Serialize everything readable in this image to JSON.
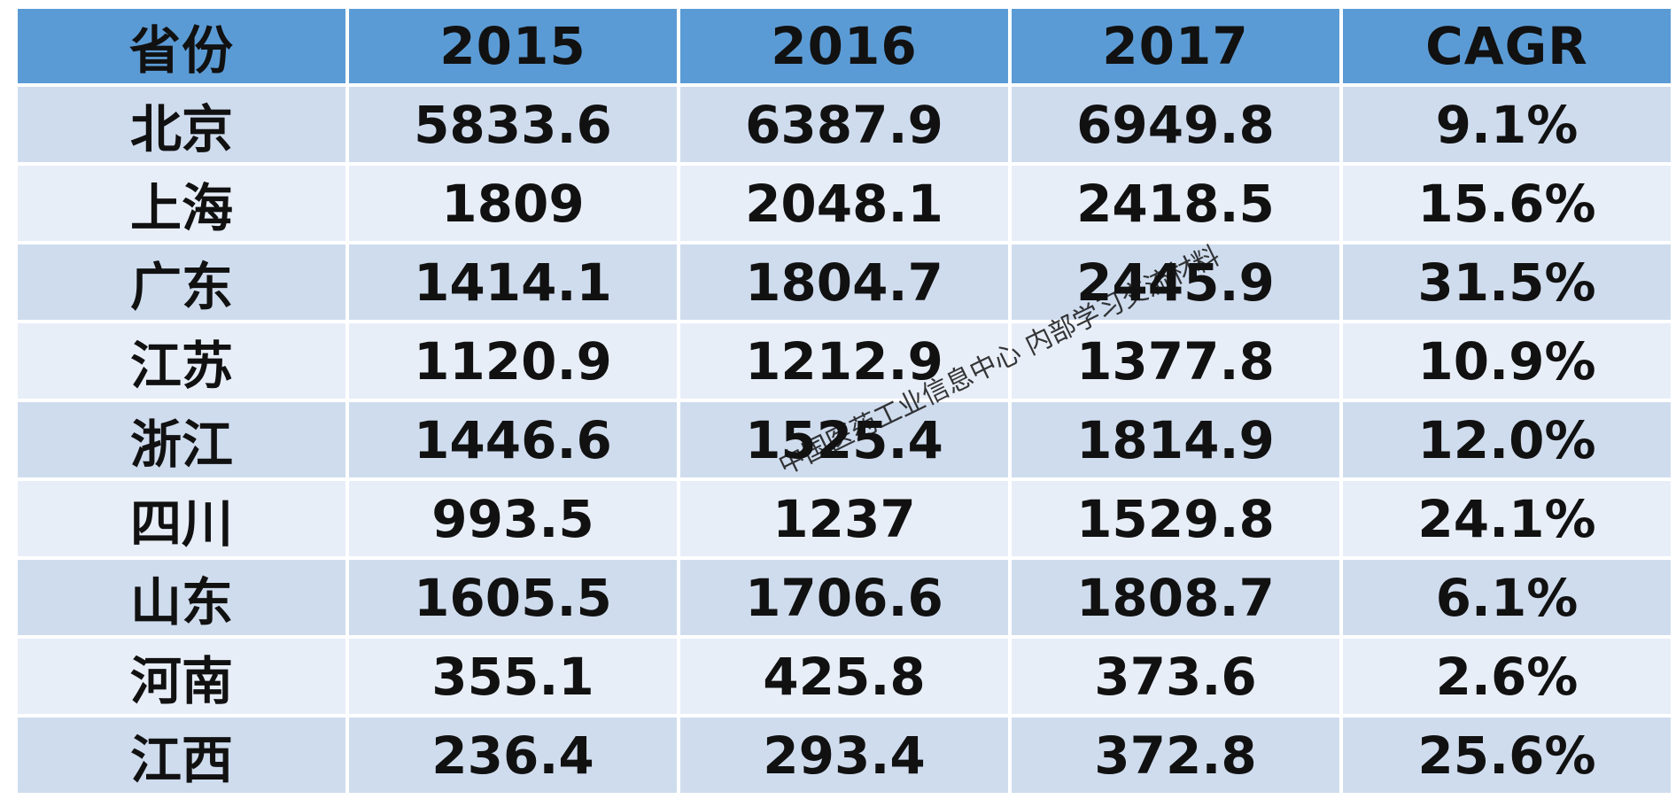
{
  "chart_data": {
    "type": "table",
    "columns": [
      "省份",
      "2015",
      "2016",
      "2017",
      "CAGR"
    ],
    "rows": [
      [
        "北京",
        "5833.6",
        "6387.9",
        "6949.8",
        "9.1%"
      ],
      [
        "上海",
        "1809",
        "2048.1",
        "2418.5",
        "15.6%"
      ],
      [
        "广东",
        "1414.1",
        "1804.7",
        "2445.9",
        "31.5%"
      ],
      [
        "江苏",
        "1120.9",
        "1212.9",
        "1377.8",
        "10.9%"
      ],
      [
        "浙江",
        "1446.6",
        "1525.4",
        "1814.9",
        "12.0%"
      ],
      [
        "四川",
        "993.5",
        "1237",
        "1529.8",
        "24.1%"
      ],
      [
        "山东",
        "1605.5",
        "1706.6",
        "1808.7",
        "6.1%"
      ],
      [
        "河南",
        "355.1",
        "425.8",
        "373.6",
        "2.6%"
      ],
      [
        "江西",
        "236.4",
        "293.4",
        "372.8",
        "25.6%"
      ]
    ]
  },
  "watermark": "中国医药工业信息中心 内部学习交流材料",
  "colors": {
    "header_bg": "#5b9bd5",
    "row_dark": "#cfdcee",
    "row_light": "#e8eef8"
  }
}
